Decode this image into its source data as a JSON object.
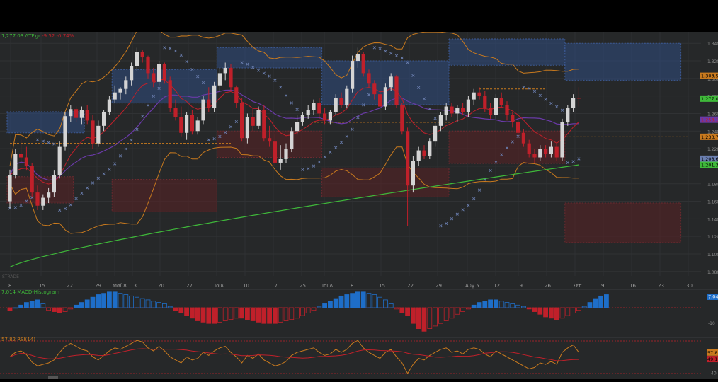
{
  "chart_data": {
    "type": "candlestick",
    "header": {
      "last": "1,277.03",
      "symbol": "ΔTF.gr",
      "change": "-9.52",
      "change_pct": "-0.74%"
    },
    "colors": {
      "up": "#d4d4d4",
      "down": "#c0202a",
      "ma_long": "#3fb93a",
      "ma_mid": "#6a3aa8",
      "bands": "#c97a1e",
      "sar": "#6b7fb0",
      "macd_up": "#1e6ec8",
      "macd_down": "#c0202a",
      "rsi": "#c97a1e",
      "rsi_avg": "#c0202a",
      "bg": "#262829"
    },
    "x_labels": [
      "8",
      "15",
      "22",
      "29",
      "Μαϊ 8",
      "13",
      "20",
      "27",
      "Ιουν",
      "10",
      "17",
      "25",
      "ΙουΛ",
      "8",
      "15",
      "22",
      "29",
      "Αυγ 5",
      "12",
      "19",
      "26",
      "Σεπ",
      "9",
      "16",
      "23",
      "30"
    ],
    "y_ticks": [
      "1.340",
      "1.320",
      "1.300",
      "1.280",
      "1.260",
      "1.240",
      "1.220",
      "1.200",
      "1.180",
      "1.160",
      "1.140",
      "1.120",
      "1.100",
      "1.080"
    ],
    "ylim": [
      1.075,
      1.345
    ],
    "price_tags": [
      {
        "value": "1.303.59",
        "y": 1.303,
        "color": "#c97a1e",
        "text": "#000"
      },
      {
        "value": "1.277.03",
        "y": 1.277,
        "color": "#3fb93a",
        "text": "#000"
      },
      {
        "value": "1.253.19",
        "y": 1.253,
        "color": "#6a3aa8",
        "text": "#c0202a"
      },
      {
        "value": "1.233.72",
        "y": 1.2335,
        "color": "#c97a1e",
        "text": "#000"
      },
      {
        "value": "1.208.63",
        "y": 1.2085,
        "color": "#6b7fb0",
        "text": "#000"
      },
      {
        "value": "1.201.33",
        "y": 1.2015,
        "color": "#3fb93a",
        "text": "#000"
      }
    ],
    "candles": [
      [
        1.16,
        1.196,
        1.152,
        1.19
      ],
      [
        1.19,
        1.22,
        1.186,
        1.214
      ],
      [
        1.214,
        1.23,
        1.205,
        1.21
      ],
      [
        1.21,
        1.222,
        1.195,
        1.2
      ],
      [
        1.2,
        1.204,
        1.165,
        1.17
      ],
      [
        1.17,
        1.178,
        1.15,
        1.155
      ],
      [
        1.155,
        1.168,
        1.15,
        1.164
      ],
      [
        1.164,
        1.175,
        1.158,
        1.17
      ],
      [
        1.17,
        1.195,
        1.165,
        1.19
      ],
      [
        1.19,
        1.228,
        1.186,
        1.222
      ],
      [
        1.222,
        1.262,
        1.218,
        1.257
      ],
      [
        1.257,
        1.27,
        1.25,
        1.265
      ],
      [
        1.265,
        1.268,
        1.25,
        1.255
      ],
      [
        1.255,
        1.268,
        1.248,
        1.264
      ],
      [
        1.264,
        1.27,
        1.248,
        1.252
      ],
      [
        1.252,
        1.258,
        1.22,
        1.226
      ],
      [
        1.226,
        1.252,
        1.222,
        1.246
      ],
      [
        1.246,
        1.264,
        1.24,
        1.262
      ],
      [
        1.262,
        1.28,
        1.258,
        1.276
      ],
      [
        1.276,
        1.292,
        1.272,
        1.284
      ],
      [
        1.284,
        1.29,
        1.276,
        1.288
      ],
      [
        1.288,
        1.302,
        1.282,
        1.298
      ],
      [
        1.298,
        1.318,
        1.292,
        1.314
      ],
      [
        1.314,
        1.335,
        1.308,
        1.33
      ],
      [
        1.33,
        1.332,
        1.318,
        1.324
      ],
      [
        1.324,
        1.326,
        1.3,
        1.306
      ],
      [
        1.306,
        1.312,
        1.29,
        1.296
      ],
      [
        1.296,
        1.32,
        1.292,
        1.316
      ],
      [
        1.316,
        1.318,
        1.294,
        1.298
      ],
      [
        1.298,
        1.302,
        1.262,
        1.266
      ],
      [
        1.266,
        1.276,
        1.252,
        1.256
      ],
      [
        1.256,
        1.268,
        1.234,
        1.238
      ],
      [
        1.238,
        1.262,
        1.23,
        1.258
      ],
      [
        1.258,
        1.264,
        1.236,
        1.24
      ],
      [
        1.24,
        1.256,
        1.236,
        1.252
      ],
      [
        1.252,
        1.28,
        1.248,
        1.276
      ],
      [
        1.276,
        1.29,
        1.262,
        1.266
      ],
      [
        1.266,
        1.296,
        1.262,
        1.292
      ],
      [
        1.292,
        1.312,
        1.286,
        1.306
      ],
      [
        1.306,
        1.318,
        1.298,
        1.312
      ],
      [
        1.312,
        1.316,
        1.286,
        1.29
      ],
      [
        1.29,
        1.292,
        1.266,
        1.272
      ],
      [
        1.272,
        1.278,
        1.228,
        1.232
      ],
      [
        1.232,
        1.26,
        1.226,
        1.256
      ],
      [
        1.256,
        1.266,
        1.24,
        1.246
      ],
      [
        1.246,
        1.268,
        1.242,
        1.264
      ],
      [
        1.264,
        1.27,
        1.228,
        1.232
      ],
      [
        1.232,
        1.246,
        1.222,
        1.228
      ],
      [
        1.228,
        1.236,
        1.2,
        1.204
      ],
      [
        1.204,
        1.224,
        1.196,
        1.208
      ],
      [
        1.208,
        1.226,
        1.204,
        1.22
      ],
      [
        1.22,
        1.244,
        1.216,
        1.24
      ],
      [
        1.24,
        1.258,
        1.236,
        1.25
      ],
      [
        1.25,
        1.262,
        1.246,
        1.258
      ],
      [
        1.258,
        1.27,
        1.254,
        1.264
      ],
      [
        1.264,
        1.276,
        1.258,
        1.272
      ],
      [
        1.272,
        1.278,
        1.254,
        1.26
      ],
      [
        1.26,
        1.266,
        1.248,
        1.252
      ],
      [
        1.252,
        1.264,
        1.248,
        1.262
      ],
      [
        1.262,
        1.282,
        1.258,
        1.278
      ],
      [
        1.278,
        1.284,
        1.266,
        1.27
      ],
      [
        1.27,
        1.292,
        1.266,
        1.288
      ],
      [
        1.288,
        1.326,
        1.284,
        1.32
      ],
      [
        1.32,
        1.335,
        1.312,
        1.328
      ],
      [
        1.328,
        1.33,
        1.302,
        1.306
      ],
      [
        1.306,
        1.31,
        1.29,
        1.294
      ],
      [
        1.294,
        1.298,
        1.276,
        1.282
      ],
      [
        1.282,
        1.286,
        1.264,
        1.268
      ],
      [
        1.268,
        1.294,
        1.264,
        1.29
      ],
      [
        1.29,
        1.306,
        1.286,
        1.302
      ],
      [
        1.302,
        1.304,
        1.266,
        1.27
      ],
      [
        1.27,
        1.272,
        1.236,
        1.24
      ],
      [
        1.24,
        1.244,
        1.132,
        1.178
      ],
      [
        1.178,
        1.212,
        1.17,
        1.206
      ],
      [
        1.206,
        1.222,
        1.2,
        1.218
      ],
      [
        1.218,
        1.224,
        1.208,
        1.212
      ],
      [
        1.212,
        1.232,
        1.208,
        1.228
      ],
      [
        1.228,
        1.25,
        1.222,
        1.246
      ],
      [
        1.246,
        1.262,
        1.24,
        1.258
      ],
      [
        1.258,
        1.272,
        1.252,
        1.268
      ],
      [
        1.268,
        1.272,
        1.256,
        1.26
      ],
      [
        1.26,
        1.27,
        1.25,
        1.266
      ],
      [
        1.266,
        1.272,
        1.258,
        1.262
      ],
      [
        1.262,
        1.28,
        1.256,
        1.276
      ],
      [
        1.276,
        1.288,
        1.27,
        1.284
      ],
      [
        1.284,
        1.29,
        1.276,
        1.28
      ],
      [
        1.28,
        1.286,
        1.262,
        1.266
      ],
      [
        1.266,
        1.272,
        1.254,
        1.258
      ],
      [
        1.258,
        1.282,
        1.254,
        1.278
      ],
      [
        1.278,
        1.284,
        1.266,
        1.27
      ],
      [
        1.27,
        1.274,
        1.252,
        1.258
      ],
      [
        1.258,
        1.262,
        1.244,
        1.25
      ],
      [
        1.25,
        1.256,
        1.234,
        1.238
      ],
      [
        1.238,
        1.242,
        1.222,
        1.226
      ],
      [
        1.226,
        1.23,
        1.21,
        1.214
      ],
      [
        1.214,
        1.22,
        1.204,
        1.21
      ],
      [
        1.21,
        1.224,
        1.206,
        1.22
      ],
      [
        1.22,
        1.224,
        1.21,
        1.214
      ],
      [
        1.214,
        1.228,
        1.21,
        1.222
      ],
      [
        1.222,
        1.226,
        1.206,
        1.21
      ],
      [
        1.21,
        1.254,
        1.206,
        1.25
      ],
      [
        1.25,
        1.27,
        1.246,
        1.266
      ],
      [
        1.266,
        1.282,
        1.262,
        1.278
      ],
      [
        1.278,
        1.29,
        1.268,
        1.277
      ]
    ],
    "ma_long_start": 1.085,
    "ma_long_end": 1.2015,
    "zones": [
      {
        "kind": "supply",
        "x0": 0,
        "x1": 14,
        "top": 1.262,
        "bot": 1.238
      },
      {
        "kind": "demand",
        "x0": 0,
        "x1": 12,
        "top": 1.188,
        "bot": 1.158
      },
      {
        "kind": "supply",
        "x0": 19,
        "x1": 38,
        "top": 1.31,
        "bot": 1.272
      },
      {
        "kind": "demand",
        "x0": 19,
        "x1": 38,
        "top": 1.185,
        "bot": 1.148
      },
      {
        "kind": "supply",
        "x0": 38,
        "x1": 57,
        "top": 1.335,
        "bot": 1.312
      },
      {
        "kind": "demand",
        "x0": 38,
        "x1": 57,
        "top": 1.24,
        "bot": 1.21
      },
      {
        "kind": "supply",
        "x0": 57,
        "x1": 80,
        "top": 1.32,
        "bot": 1.27
      },
      {
        "kind": "demand",
        "x0": 57,
        "x1": 80,
        "top": 1.198,
        "bot": 1.165
      },
      {
        "kind": "supply",
        "x0": 80,
        "x1": 101,
        "top": 1.345,
        "bot": 1.315
      },
      {
        "kind": "demand",
        "x0": 80,
        "x1": 101,
        "top": 1.24,
        "bot": 1.203
      },
      {
        "kind": "supply",
        "x0": 101,
        "x1": 122,
        "top": 1.34,
        "bot": 1.298
      },
      {
        "kind": "demand",
        "x0": 101,
        "x1": 122,
        "top": 1.158,
        "bot": 1.113
      }
    ],
    "levels": [
      {
        "y": 1.264,
        "x0": 13,
        "x1": 55
      },
      {
        "y": 1.226,
        "x0": 0,
        "x1": 40
      },
      {
        "y": 1.25,
        "x0": 55,
        "x1": 80
      },
      {
        "y": 1.288,
        "x0": 85,
        "x1": 97
      },
      {
        "y": 1.2335,
        "x0": 100,
        "x1": 123
      }
    ],
    "macd": {
      "label": "7.014 MACD-Histogram",
      "right_tag": "7.04",
      "tick_minus": "-10",
      "values": [
        -2,
        0,
        2,
        4,
        5,
        6,
        3,
        -2,
        -3,
        -4,
        -3,
        -1,
        2,
        4,
        6,
        8,
        10,
        11,
        12,
        12,
        11,
        10,
        9,
        8,
        7,
        6,
        5,
        4,
        3,
        1,
        -2,
        -4,
        -6,
        -8,
        -10,
        -11,
        -12,
        -12,
        -11,
        -10,
        -9,
        -8,
        -8,
        -9,
        -10,
        -11,
        -12,
        -12,
        -12,
        -11,
        -10,
        -9,
        -8,
        -6,
        -4,
        -2,
        1,
        3,
        5,
        7,
        9,
        10,
        11,
        12,
        12,
        11,
        10,
        8,
        6,
        3,
        -1,
        -4,
        -6,
        -12,
        -16,
        -18,
        -16,
        -14,
        -12,
        -10,
        -8,
        -5,
        -3,
        -1,
        2,
        4,
        5,
        6,
        6,
        5,
        4,
        3,
        2,
        1,
        -1,
        -3,
        -5,
        -7,
        -8,
        -9,
        -8,
        -6,
        -4,
        -2,
        1,
        4,
        7,
        9,
        10
      ]
    },
    "rsi": {
      "label": "57.82 RSI(14)",
      "tags": [
        {
          "value": "57.82",
          "color": "#c97a1e"
        },
        {
          "value": "49.11",
          "color": "#c0202a"
        }
      ],
      "tick_40": "40",
      "values": [
        52,
        58,
        60,
        55,
        45,
        40,
        42,
        44,
        48,
        58,
        66,
        70,
        66,
        62,
        60,
        52,
        48,
        54,
        60,
        64,
        62,
        66,
        70,
        74,
        72,
        64,
        60,
        66,
        60,
        52,
        48,
        44,
        52,
        48,
        50,
        58,
        54,
        60,
        64,
        66,
        58,
        52,
        44,
        54,
        50,
        56,
        48,
        44,
        40,
        42,
        46,
        54,
        58,
        60,
        62,
        64,
        58,
        54,
        56,
        62,
        58,
        62,
        70,
        74,
        64,
        58,
        54,
        50,
        58,
        62,
        52,
        44,
        30,
        42,
        50,
        48,
        54,
        58,
        62,
        64,
        58,
        60,
        56,
        62,
        64,
        62,
        56,
        52,
        60,
        56,
        52,
        48,
        44,
        40,
        36,
        38,
        44,
        42,
        46,
        42,
        58,
        64,
        68,
        58
      ]
    },
    "footer_label": "STRADE"
  }
}
